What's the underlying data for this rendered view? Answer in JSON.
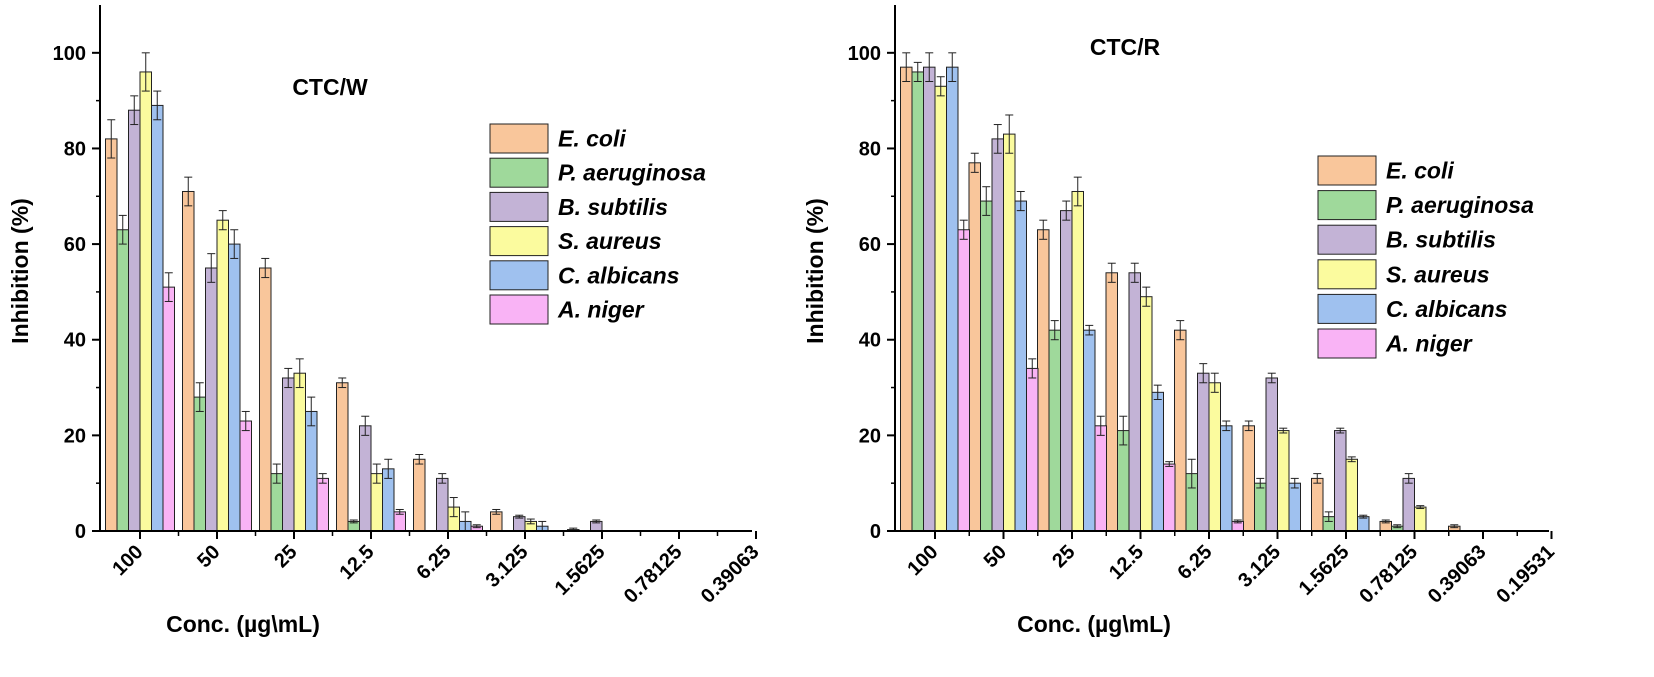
{
  "chart_data": [
    {
      "type": "bar",
      "title": "CTC/W",
      "xlabel": "Conc. (µg\\mL)",
      "ylabel": "Inhibition (%)",
      "ylim": [
        0,
        110
      ],
      "yticks": [
        0,
        20,
        40,
        60,
        80,
        100
      ],
      "grid": false,
      "legend_position": "top-right",
      "categories": [
        "100",
        "50",
        "25",
        "12.5",
        "6.25",
        "3.125",
        "1.5625",
        "0.78125",
        "0.39063"
      ],
      "series": [
        {
          "name": "E. coli",
          "color": "#f9c69b",
          "values": [
            82,
            71,
            55,
            31,
            15,
            4,
            0.3,
            0,
            0
          ],
          "errors": [
            4,
            3,
            2,
            1,
            1,
            0.5,
            0.3,
            0,
            0
          ]
        },
        {
          "name": "P. aeruginosa",
          "color": "#9fd99b",
          "values": [
            63,
            28,
            12,
            2,
            0,
            0,
            0,
            0,
            0
          ],
          "errors": [
            3,
            3,
            2,
            0.3,
            0,
            0,
            0,
            0,
            0
          ]
        },
        {
          "name": "B. subtilis",
          "color": "#c3b3d6",
          "values": [
            88,
            55,
            32,
            22,
            11,
            3,
            2,
            0,
            0
          ],
          "errors": [
            3,
            3,
            2,
            2,
            1,
            0.3,
            0.3,
            0,
            0
          ]
        },
        {
          "name": "S. aureus",
          "color": "#fbfb9e",
          "values": [
            96,
            65,
            33,
            12,
            5,
            2,
            0,
            0,
            0
          ],
          "errors": [
            4,
            2,
            3,
            2,
            2,
            0.5,
            0,
            0,
            0
          ]
        },
        {
          "name": "C. albicans",
          "color": "#9fc1ef",
          "values": [
            89,
            60,
            25,
            13,
            2,
            1,
            0,
            0,
            0
          ],
          "errors": [
            3,
            3,
            3,
            2,
            2,
            1,
            0,
            0,
            0
          ]
        },
        {
          "name": "A. niger",
          "color": "#f9b3f5",
          "values": [
            51,
            23,
            11,
            4,
            1,
            0,
            0,
            0,
            0
          ],
          "errors": [
            3,
            2,
            1,
            0.5,
            0.3,
            0,
            0,
            0,
            0
          ]
        }
      ]
    },
    {
      "type": "bar",
      "title": "CTC/R",
      "xlabel": "Conc. (µg\\mL)",
      "ylabel": "Inhibition (%)",
      "ylim": [
        0,
        110
      ],
      "yticks": [
        0,
        20,
        40,
        60,
        80,
        100
      ],
      "grid": false,
      "legend_position": "right",
      "categories": [
        "100",
        "50",
        "25",
        "12.5",
        "6.25",
        "3.125",
        "1.5625",
        "0.78125",
        "0.39063",
        "0.19531"
      ],
      "series": [
        {
          "name": "E. coli",
          "color": "#f9c69b",
          "values": [
            97,
            77,
            63,
            54,
            42,
            22,
            11,
            2,
            1,
            0
          ],
          "errors": [
            3,
            2,
            2,
            2,
            2,
            1,
            1,
            0.3,
            0.3,
            0
          ]
        },
        {
          "name": "P. aeruginosa",
          "color": "#9fd99b",
          "values": [
            96,
            69,
            42,
            21,
            12,
            10,
            3,
            1,
            0,
            0
          ],
          "errors": [
            2,
            3,
            2,
            3,
            3,
            1,
            1,
            0.3,
            0,
            0
          ]
        },
        {
          "name": "B. subtilis",
          "color": "#c3b3d6",
          "values": [
            97,
            82,
            67,
            54,
            33,
            32,
            21,
            11,
            0,
            0
          ],
          "errors": [
            3,
            3,
            2,
            2,
            2,
            1,
            0.5,
            1,
            0,
            0
          ]
        },
        {
          "name": "S. aureus",
          "color": "#fbfb9e",
          "values": [
            93,
            83,
            71,
            49,
            31,
            21,
            15,
            5,
            0,
            0
          ],
          "errors": [
            2,
            4,
            3,
            2,
            2,
            0.5,
            0.5,
            0.3,
            0,
            0
          ]
        },
        {
          "name": "C. albicans",
          "color": "#9fc1ef",
          "values": [
            97,
            69,
            42,
            29,
            22,
            10,
            3,
            0,
            0,
            0
          ],
          "errors": [
            3,
            2,
            1,
            1.5,
            1,
            1,
            0.3,
            0,
            0,
            0
          ]
        },
        {
          "name": "A. niger",
          "color": "#f9b3f5",
          "values": [
            63,
            34,
            22,
            14,
            2,
            0,
            0,
            0,
            0,
            0
          ],
          "errors": [
            2,
            2,
            2,
            0.5,
            0.3,
            0,
            0,
            0,
            0,
            0
          ]
        }
      ]
    }
  ]
}
